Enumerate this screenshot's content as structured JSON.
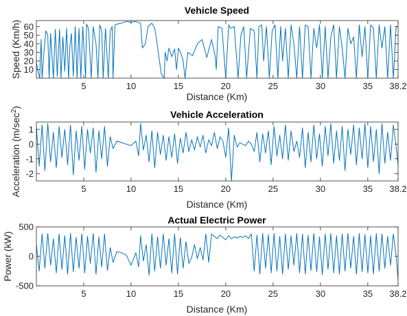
{
  "figure": {
    "line_color": "#0072BD"
  },
  "chart_data": [
    {
      "type": "line",
      "title": "Vehicle Speed",
      "xlabel": "Distance (Km)",
      "ylabel": "Speed (Km/h)",
      "xlim": [
        0,
        38.2
      ],
      "ylim": [
        0,
        67
      ],
      "xticks": [
        5,
        10,
        15,
        20,
        25,
        30,
        35,
        38.2
      ],
      "xtick_labels": [
        "5",
        "10",
        "15",
        "20",
        "25",
        "30",
        "35",
        "38.2"
      ],
      "yticks": [
        10,
        20,
        30,
        40,
        50,
        60
      ],
      "ytick_labels": [
        "10",
        "20",
        "30",
        "40",
        "50",
        "60"
      ],
      "grid": false,
      "series": [
        {
          "x": [
            0,
            0.2,
            0.35,
            0.5,
            0.6,
            0.8,
            1.0,
            1.2,
            1.35,
            1.5,
            1.8,
            2.0,
            2.2,
            2.45,
            2.6,
            2.8,
            3.0,
            3.2,
            3.4,
            3.55,
            3.7,
            3.9,
            4.1,
            4.3,
            4.5,
            4.7,
            4.9,
            5.2,
            5.3,
            5.5,
            5.8,
            6.0,
            6.3,
            6.5,
            6.7,
            6.9,
            7.05,
            7.3,
            7.6,
            7.8,
            8.0,
            8.1,
            8.3,
            8.6,
            9.0,
            9.5,
            10.0,
            10.5,
            11.0,
            11.2,
            11.5,
            11.8,
            12.2,
            12.5,
            12.7,
            13.0,
            13.2,
            13.5,
            13.6,
            13.8,
            14.0,
            14.3,
            14.6,
            14.8,
            15.0,
            15.3,
            15.5,
            15.7,
            16.0,
            16.5,
            17.0,
            17.5,
            18.0,
            18.5,
            18.9,
            19.0,
            19.2,
            19.6,
            20.0,
            20.3,
            20.5,
            20.9,
            21.3,
            21.6,
            21.9,
            22.2,
            22.6,
            23.0,
            23.3,
            23.5,
            23.8,
            24.0,
            24.3,
            24.6,
            24.9,
            25.2,
            25.5,
            25.8,
            26.0,
            26.3,
            26.6,
            26.9,
            27.2,
            27.5,
            27.8,
            28.1,
            28.4,
            28.7,
            29.0,
            29.3,
            29.6,
            29.9,
            30.2,
            30.5,
            30.8,
            31.1,
            31.4,
            31.7,
            32.0,
            32.3,
            32.6,
            32.9,
            33.2,
            33.5,
            33.8,
            34.1,
            34.4,
            34.7,
            35.0,
            35.3,
            35.6,
            35.9,
            36.2,
            36.5,
            36.8,
            37.1,
            37.4,
            37.7,
            38.0,
            38.2
          ],
          "y": [
            18,
            6,
            0,
            45,
            0,
            30,
            55,
            50,
            0,
            52,
            0,
            57,
            2,
            57,
            0,
            48,
            8,
            58,
            0,
            38,
            52,
            2,
            60,
            0,
            58,
            0,
            60,
            0,
            63,
            58,
            0,
            60,
            40,
            0,
            62,
            55,
            0,
            58,
            0,
            55,
            60,
            0,
            62,
            63,
            64,
            66,
            65,
            66,
            64,
            35,
            40,
            60,
            64,
            58,
            45,
            20,
            5,
            0,
            30,
            20,
            35,
            25,
            34,
            10,
            35,
            28,
            20,
            0,
            30,
            26,
            40,
            45,
            24,
            45,
            25,
            10,
            60,
            58,
            0,
            62,
            58,
            60,
            0,
            50,
            60,
            0,
            58,
            55,
            0,
            60,
            62,
            20,
            60,
            0,
            55,
            62,
            0,
            60,
            20,
            58,
            0,
            62,
            40,
            0,
            60,
            0,
            62,
            60,
            0,
            58,
            35,
            62,
            0,
            60,
            0,
            48,
            62,
            0,
            60,
            35,
            0,
            58,
            40,
            48,
            0,
            62,
            25,
            60,
            0,
            62,
            58,
            0,
            62,
            35,
            60,
            0,
            62,
            0,
            60,
            60
          ]
        }
      ]
    },
    {
      "type": "line",
      "title": "Vehicle Acceleration",
      "xlabel": "Distance (Km)",
      "ylabel": "Acceleration (m/sec",
      "ylabel_exp": "2",
      "ylabel_end": ")",
      "xlim": [
        0,
        38.2
      ],
      "ylim": [
        -2.5,
        1.5
      ],
      "xticks": [
        5,
        10,
        15,
        20,
        25,
        30,
        35,
        38.2
      ],
      "xtick_labels": [
        "5",
        "10",
        "15",
        "20",
        "25",
        "30",
        "35",
        "38.2"
      ],
      "yticks": [
        -2,
        -1,
        0,
        1
      ],
      "ytick_labels": [
        "-2",
        "-1",
        "0",
        "1"
      ],
      "grid": false,
      "series": [
        {
          "x": [
            0,
            0.3,
            0.6,
            0.9,
            1.2,
            1.5,
            1.8,
            2.1,
            2.4,
            2.7,
            3.0,
            3.3,
            3.6,
            3.9,
            4.2,
            4.5,
            4.8,
            5.1,
            5.4,
            5.7,
            6.0,
            6.3,
            6.6,
            6.9,
            7.2,
            7.5,
            7.8,
            8.1,
            8.5,
            9.0,
            9.5,
            10.0,
            10.5,
            10.8,
            11.0,
            11.3,
            11.6,
            11.9,
            12.2,
            12.5,
            12.8,
            13.1,
            13.4,
            13.7,
            14.0,
            14.3,
            14.6,
            14.9,
            15.2,
            15.5,
            15.8,
            16.1,
            16.4,
            16.7,
            17.0,
            17.3,
            17.6,
            17.9,
            18.2,
            18.5,
            18.8,
            19.1,
            19.4,
            19.7,
            20.0,
            20.3,
            20.6,
            20.9,
            21.2,
            21.5,
            21.8,
            22.1,
            22.4,
            22.7,
            23.0,
            23.3,
            23.6,
            23.9,
            24.2,
            24.5,
            24.8,
            25.1,
            25.4,
            25.7,
            26.0,
            26.3,
            26.6,
            26.9,
            27.2,
            27.5,
            27.8,
            28.1,
            28.4,
            28.7,
            29.0,
            29.3,
            29.6,
            29.9,
            30.2,
            30.5,
            30.8,
            31.1,
            31.4,
            31.7,
            32.0,
            32.3,
            32.6,
            32.9,
            33.2,
            33.5,
            33.8,
            34.1,
            34.4,
            34.7,
            35.0,
            35.3,
            35.6,
            35.9,
            36.2,
            36.5,
            36.8,
            37.1,
            37.4,
            37.7,
            38.0,
            38.2
          ],
          "y": [
            1.2,
            -1.5,
            1.3,
            -1.8,
            1.4,
            -1.2,
            0.8,
            -1.6,
            1.2,
            -0.9,
            1.0,
            -1.4,
            1.3,
            -2.1,
            0.9,
            -1.1,
            1.2,
            -1.7,
            1.0,
            -0.6,
            1.1,
            -1.9,
            0.9,
            -1.0,
            1.2,
            -1.5,
            0.5,
            -0.3,
            0.2,
            0.1,
            0.0,
            -0.1,
            0.2,
            -0.8,
            1.4,
            -0.4,
            0.6,
            -1.2,
            0.9,
            -1.6,
            0.8,
            -0.7,
            0.6,
            -1.1,
            0.5,
            -0.9,
            0.7,
            -1.3,
            0.4,
            -0.6,
            0.8,
            -0.5,
            0.3,
            -0.4,
            0.5,
            -0.2,
            0.6,
            -0.6,
            0.3,
            -0.1,
            0.8,
            -0.3,
            0.5,
            0.2,
            -0.9,
            1.1,
            -2.5,
            0.6,
            -0.2,
            0.1,
            0.0,
            -0.1,
            0.2,
            0.0,
            -0.5,
            0.8,
            -1.2,
            0.7,
            -0.6,
            0.9,
            -1.4,
            1.2,
            -0.8,
            0.6,
            -1.0,
            1.3,
            -1.1,
            0.9,
            -0.5,
            0.2,
            -0.9,
            1.1,
            -1.6,
            0.8,
            -1.2,
            1.3,
            -1.0,
            0.7,
            -1.5,
            1.2,
            -0.8,
            1.4,
            -1.3,
            0.9,
            -1.1,
            1.2,
            -1.8,
            1.0,
            -0.7,
            1.3,
            -1.4,
            1.1,
            -1.0,
            1.4,
            -1.6,
            1.2,
            -1.2,
            1.0,
            -2.0,
            1.4,
            -1.3,
            0.8,
            -1.1,
            1.3,
            -0.2,
            -1.4
          ]
        }
      ]
    },
    {
      "type": "line",
      "title": "Actual Electric Power",
      "xlabel": "Distance (Km)",
      "ylabel": "Power (kW)",
      "xlim": [
        0,
        38.2
      ],
      "ylim": [
        -500,
        500
      ],
      "xticks": [
        5,
        10,
        15,
        20,
        25,
        30,
        35,
        38.2
      ],
      "xtick_labels": [
        "5",
        "10",
        "15",
        "20",
        "25",
        "30",
        "35",
        "38.2"
      ],
      "yticks": [
        -500,
        0,
        500
      ],
      "ytick_labels": [
        "-500",
        "0",
        "500"
      ],
      "grid": false,
      "series": [
        {
          "x": [
            0,
            0.3,
            0.6,
            0.9,
            1.2,
            1.5,
            1.8,
            2.1,
            2.4,
            2.7,
            3.0,
            3.3,
            3.6,
            3.9,
            4.2,
            4.5,
            4.8,
            5.1,
            5.4,
            5.7,
            6.0,
            6.3,
            6.6,
            6.9,
            7.2,
            7.5,
            7.8,
            8.1,
            8.5,
            9.0,
            9.5,
            10.0,
            10.5,
            10.8,
            11.0,
            11.3,
            11.6,
            11.9,
            12.2,
            12.5,
            12.8,
            13.1,
            13.4,
            13.7,
            14.0,
            14.3,
            14.6,
            14.9,
            15.2,
            15.5,
            15.8,
            16.1,
            16.4,
            16.7,
            17.0,
            17.3,
            17.6,
            17.9,
            18.2,
            18.5,
            18.8,
            19.1,
            19.4,
            19.7,
            20.0,
            20.3,
            20.6,
            20.9,
            21.2,
            21.5,
            21.8,
            22.1,
            22.4,
            22.7,
            23.0,
            23.3,
            23.6,
            23.9,
            24.2,
            24.5,
            24.8,
            25.1,
            25.4,
            25.7,
            26.0,
            26.3,
            26.6,
            26.9,
            27.2,
            27.5,
            27.8,
            28.1,
            28.4,
            28.7,
            29.0,
            29.3,
            29.6,
            29.9,
            30.2,
            30.5,
            30.8,
            31.1,
            31.4,
            31.7,
            32.0,
            32.3,
            32.6,
            32.9,
            33.2,
            33.5,
            33.8,
            34.1,
            34.4,
            34.7,
            35.0,
            35.3,
            35.6,
            35.9,
            36.2,
            36.5,
            36.8,
            37.1,
            37.4,
            37.7,
            38.0,
            38.2
          ],
          "y": [
            200,
            -250,
            380,
            -200,
            390,
            -150,
            300,
            -280,
            380,
            -220,
            350,
            -300,
            390,
            -260,
            320,
            -200,
            380,
            -280,
            340,
            -120,
            390,
            -300,
            330,
            -180,
            380,
            -240,
            150,
            -100,
            80,
            60,
            20,
            -150,
            60,
            -180,
            350,
            -80,
            200,
            -320,
            380,
            -250,
            330,
            -200,
            380,
            -150,
            300,
            -280,
            380,
            -300,
            320,
            -200,
            250,
            -120,
            -20,
            200,
            -40,
            150,
            -60,
            380,
            -100,
            380,
            340,
            300,
            360,
            320,
            280,
            350,
            300,
            330,
            310,
            340,
            320,
            350,
            300,
            380,
            -250,
            360,
            -300,
            390,
            -200,
            370,
            -280,
            390,
            -250,
            340,
            -300,
            380,
            -220,
            350,
            -150,
            390,
            -280,
            380,
            -300,
            360,
            -240,
            390,
            -260,
            330,
            -310,
            380,
            -220,
            390,
            -280,
            350,
            -300,
            380,
            -250,
            390,
            -200,
            340,
            -300,
            390,
            -260,
            370,
            -280,
            350,
            -300,
            390,
            -250,
            380,
            -200,
            340,
            -150,
            380,
            0,
            -400
          ]
        }
      ]
    }
  ]
}
